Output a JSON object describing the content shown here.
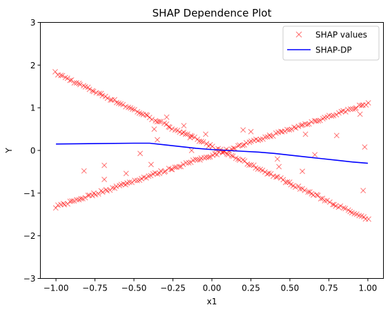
{
  "chart_data": {
    "type": "scatter",
    "title": "SHAP Dependence Plot",
    "xlabel": "x1",
    "ylabel": "Y",
    "xlim": [
      -1.1,
      1.1
    ],
    "ylim": [
      -3,
      3
    ],
    "xticks": [
      -1.0,
      -0.75,
      -0.5,
      -0.25,
      0.0,
      0.25,
      0.5,
      0.75,
      1.0
    ],
    "xtick_labels": [
      "−1.00",
      "−0.75",
      "−0.50",
      "−0.25",
      "0.00",
      "0.25",
      "0.50",
      "0.75",
      "1.00"
    ],
    "yticks": [
      -3,
      -2,
      -1,
      0,
      1,
      2,
      3
    ],
    "ytick_labels": [
      "−3",
      "−2",
      "−1",
      "0",
      "1",
      "2",
      "3"
    ],
    "grid": false,
    "legend_position": "top-right",
    "series": [
      {
        "name": "SHAP values",
        "kind": "scatter",
        "marker": "x",
        "color": "#ff0000",
        "alpha": 0.5,
        "lines": [
          {
            "x_range": [
              -1.0,
              1.0
            ],
            "slope": -1.72,
            "intercept": 0.09
          },
          {
            "x_range": [
              -1.0,
              1.0
            ],
            "slope": 1.21,
            "intercept": -0.11
          }
        ],
        "line_point_count": 140,
        "outliers": [
          [
            -0.82,
            -0.48
          ],
          [
            -0.69,
            -0.35
          ],
          [
            -0.69,
            -0.68
          ],
          [
            -0.55,
            -0.54
          ],
          [
            -0.46,
            -0.07
          ],
          [
            -0.39,
            -0.33
          ],
          [
            -0.37,
            0.5
          ],
          [
            -0.35,
            0.25
          ],
          [
            -0.29,
            0.78
          ],
          [
            -0.18,
            0.58
          ],
          [
            -0.14,
            0.3
          ],
          [
            -0.13,
            0.0
          ],
          [
            -0.04,
            0.38
          ],
          [
            0.2,
            0.48
          ],
          [
            0.25,
            0.44
          ],
          [
            0.42,
            -0.2
          ],
          [
            0.43,
            -0.38
          ],
          [
            0.58,
            -0.49
          ],
          [
            0.6,
            0.38
          ],
          [
            0.66,
            -0.1
          ],
          [
            0.8,
            0.35
          ],
          [
            0.95,
            0.85
          ],
          [
            0.97,
            -0.94
          ],
          [
            0.98,
            0.08
          ]
        ]
      },
      {
        "name": "SHAP-DP",
        "kind": "line",
        "color": "#0000ff",
        "points": [
          [
            -1.0,
            0.15
          ],
          [
            -0.75,
            0.16
          ],
          [
            -0.5,
            0.17
          ],
          [
            -0.4,
            0.17
          ],
          [
            -0.3,
            0.13
          ],
          [
            -0.2,
            0.09
          ],
          [
            -0.1,
            0.05
          ],
          [
            0.0,
            0.02
          ],
          [
            0.1,
            0.0
          ],
          [
            0.2,
            -0.02
          ],
          [
            0.3,
            -0.04
          ],
          [
            0.4,
            -0.07
          ],
          [
            0.5,
            -0.11
          ],
          [
            0.6,
            -0.15
          ],
          [
            0.7,
            -0.19
          ],
          [
            0.8,
            -0.23
          ],
          [
            0.9,
            -0.27
          ],
          [
            1.0,
            -0.3
          ]
        ]
      }
    ]
  }
}
